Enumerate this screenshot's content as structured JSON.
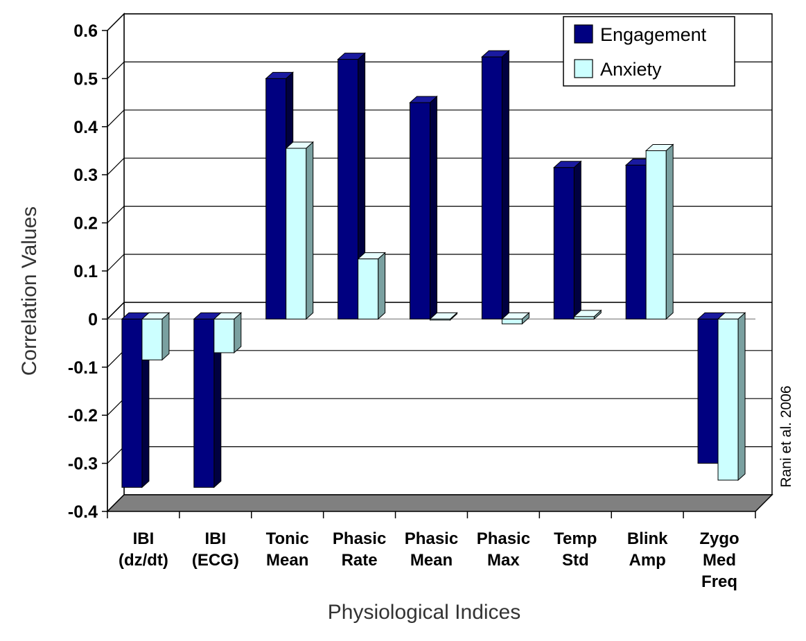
{
  "chart_data": {
    "type": "bar",
    "title": "",
    "xlabel": "Physiological Indices",
    "ylabel": "Correlation Values",
    "ylim": [
      -0.4,
      0.6
    ],
    "yticks": [
      "0.6",
      "0.5",
      "0.4",
      "0.3",
      "0.2",
      "0.1",
      "0",
      "-0.1",
      "-0.2",
      "-0.3",
      "-0.4"
    ],
    "ytick_values": [
      0.6,
      0.5,
      0.4,
      0.3,
      0.2,
      0.1,
      0,
      -0.1,
      -0.2,
      -0.3,
      -0.4
    ],
    "grid": true,
    "legend_position": "top-right",
    "categories": [
      [
        "IBI",
        "(dz/dt)"
      ],
      [
        "IBI",
        "(ECG)"
      ],
      [
        "Tonic",
        "Mean"
      ],
      [
        "Phasic",
        "Rate"
      ],
      [
        "Phasic",
        "Mean"
      ],
      [
        "Phasic",
        "Max"
      ],
      [
        "Temp",
        "Std"
      ],
      [
        "Blink",
        "Amp"
      ],
      [
        "Zygo",
        "Med",
        "Freq"
      ]
    ],
    "series": [
      {
        "name": "Engagement",
        "color": "#000080",
        "values": [
          -0.35,
          -0.35,
          0.5,
          0.54,
          0.45,
          0.545,
          0.315,
          0.32,
          -0.3
        ]
      },
      {
        "name": "Anxiety",
        "color": "#ccffff",
        "values": [
          -0.085,
          -0.07,
          0.355,
          0.125,
          0.0,
          -0.01,
          0.005,
          0.35,
          -0.335
        ]
      }
    ],
    "credit": "Rani et al. 2006"
  }
}
